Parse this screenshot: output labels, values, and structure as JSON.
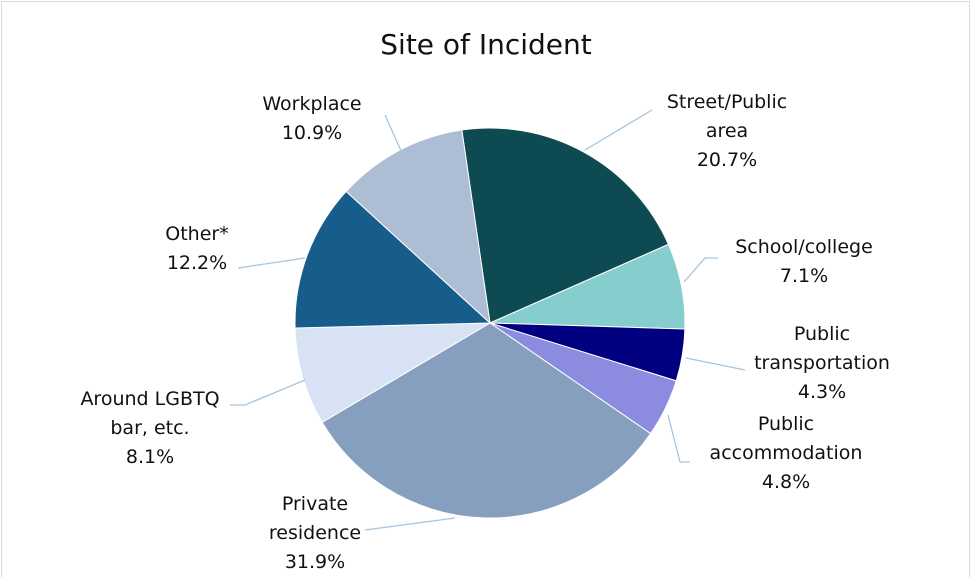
{
  "chart_data": {
    "type": "pie",
    "title": "Site of Incident",
    "categories": [
      "Street/Public area",
      "School/college",
      "Public transportation",
      "Public accommodation",
      "Private residence",
      "Around LGBTQ bar, etc.",
      "Other*",
      "Workplace"
    ],
    "values": [
      20.7,
      7.1,
      4.3,
      4.8,
      31.9,
      8.1,
      12.2,
      10.9
    ],
    "value_labels": [
      "20.7%",
      "7.1%",
      "4.3%",
      "4.8%",
      "31.9%",
      "8.1%",
      "12.2%",
      "10.9%"
    ],
    "colors": [
      "#0e4a52",
      "#86cece",
      "#000080",
      "#8b8be0",
      "#879fbf",
      "#d7e3f4",
      "#175d8b",
      "#adbdd3"
    ]
  }
}
